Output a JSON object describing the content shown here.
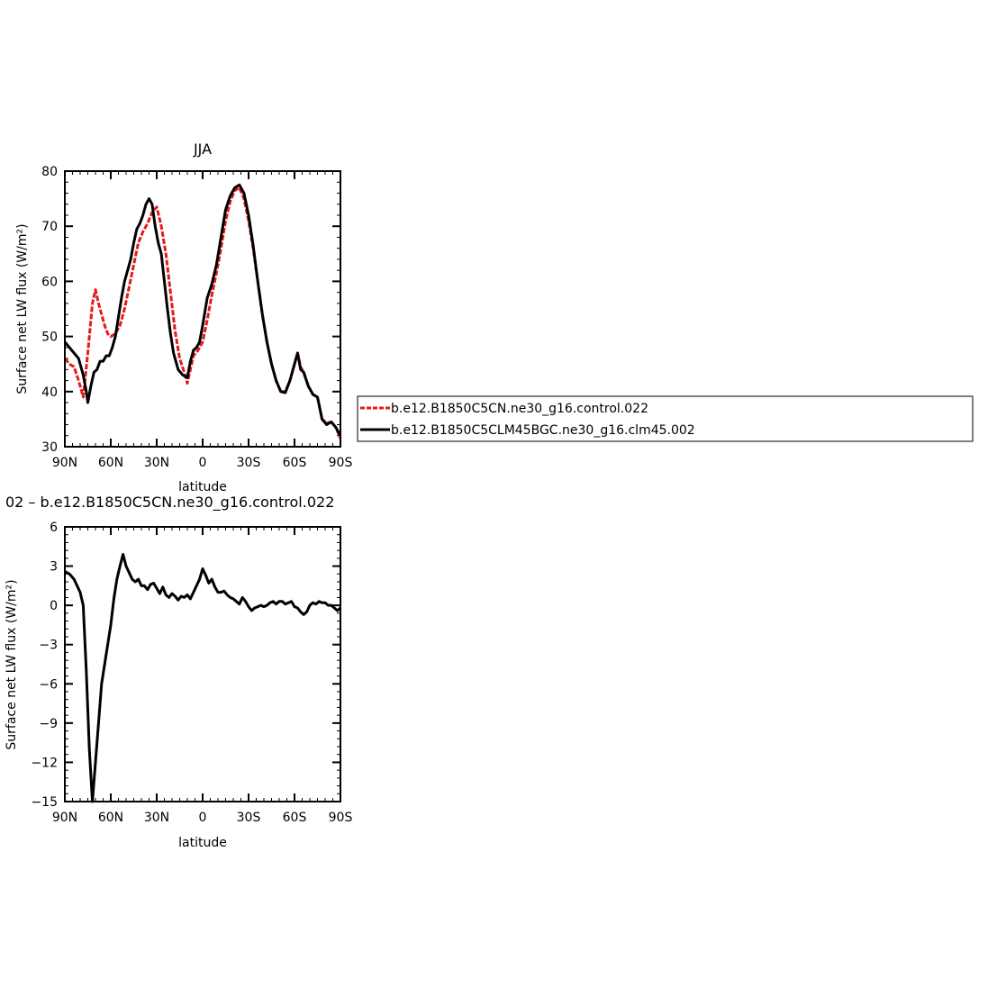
{
  "chart_data": [
    {
      "type": "line",
      "title": "JJA",
      "xlabel": "latitude",
      "ylabel": "Surface net LW flux (W/m²)",
      "xlim": [
        90,
        -90
      ],
      "ylim": [
        30,
        80
      ],
      "x_ticks": [
        90,
        60,
        30,
        0,
        -30,
        -60,
        -90
      ],
      "x_tick_labels": [
        "90N",
        "60N",
        "30N",
        "0",
        "30S",
        "60S",
        "90S"
      ],
      "y_ticks": [
        30,
        40,
        50,
        60,
        70,
        80
      ],
      "y_tick_labels": [
        "30",
        "40",
        "50",
        "60",
        "70",
        "80"
      ],
      "legend_position": "right",
      "series": [
        {
          "name": "b.e12.B1850C5CN.ne30_g16.control.022",
          "color": "#e41a1c",
          "dash": "dashed",
          "points": [
            [
              90,
              46
            ],
            [
              87,
              45
            ],
            [
              84,
              44.5
            ],
            [
              81,
              42
            ],
            [
              78,
              39
            ],
            [
              75,
              47
            ],
            [
              72,
              56
            ],
            [
              70,
              58.5
            ],
            [
              68,
              56
            ],
            [
              66,
              54
            ],
            [
              64,
              52
            ],
            [
              62,
              50.5
            ],
            [
              60,
              50
            ],
            [
              57,
              50.5
            ],
            [
              54,
              52
            ],
            [
              51,
              55
            ],
            [
              48,
              59
            ],
            [
              45,
              63
            ],
            [
              42,
              67
            ],
            [
              39,
              69
            ],
            [
              36,
              70.5
            ],
            [
              33,
              72.5
            ],
            [
              30,
              73.5
            ],
            [
              27,
              70
            ],
            [
              24,
              65
            ],
            [
              21,
              58
            ],
            [
              18,
              51
            ],
            [
              15,
              46
            ],
            [
              12,
              43.5
            ],
            [
              10,
              41.5
            ],
            [
              8,
              44
            ],
            [
              6,
              46.5
            ],
            [
              3,
              47.5
            ],
            [
              0,
              49
            ],
            [
              -3,
              53
            ],
            [
              -6,
              57.5
            ],
            [
              -9,
              61.5
            ],
            [
              -12,
              66
            ],
            [
              -15,
              71
            ],
            [
              -18,
              74.5
            ],
            [
              -21,
              76.5
            ],
            [
              -24,
              77
            ],
            [
              -27,
              75
            ],
            [
              -30,
              71
            ],
            [
              -33,
              66
            ],
            [
              -36,
              60
            ],
            [
              -39,
              54
            ],
            [
              -42,
              49
            ],
            [
              -45,
              45
            ],
            [
              -48,
              42
            ],
            [
              -51,
              40
            ],
            [
              -54,
              40
            ],
            [
              -57,
              42
            ],
            [
              -60,
              45
            ],
            [
              -62,
              47
            ],
            [
              -64,
              44.5
            ],
            [
              -66,
              43.5
            ],
            [
              -69,
              41
            ],
            [
              -72,
              39.5
            ],
            [
              -75,
              39
            ],
            [
              -78,
              35
            ],
            [
              -81,
              34.3
            ],
            [
              -84,
              34.5
            ],
            [
              -87,
              33.5
            ],
            [
              -90,
              31.5
            ]
          ]
        },
        {
          "name": "b.e12.B1850C5CLM45BGC.ne30_g16.clm45.002",
          "color": "#000000",
          "dash": "solid",
          "points": [
            [
              90,
              49
            ],
            [
              87,
              48
            ],
            [
              84,
              47
            ],
            [
              81,
              46
            ],
            [
              78,
              43
            ],
            [
              76,
              40
            ],
            [
              75,
              38
            ],
            [
              73,
              41
            ],
            [
              71,
              43.5
            ],
            [
              69,
              44
            ],
            [
              67,
              45.5
            ],
            [
              65,
              45.5
            ],
            [
              63,
              46.5
            ],
            [
              61,
              46.5
            ],
            [
              59,
              48
            ],
            [
              57,
              50
            ],
            [
              55,
              53.5
            ],
            [
              53,
              57
            ],
            [
              51,
              60
            ],
            [
              49,
              62
            ],
            [
              47,
              64
            ],
            [
              45,
              67
            ],
            [
              43,
              69.5
            ],
            [
              41,
              70.5
            ],
            [
              39,
              72
            ],
            [
              37,
              74
            ],
            [
              35,
              75
            ],
            [
              33,
              74
            ],
            [
              31,
              70
            ],
            [
              29,
              67
            ],
            [
              27,
              65
            ],
            [
              25,
              60
            ],
            [
              23,
              55
            ],
            [
              21,
              50.5
            ],
            [
              19,
              47
            ],
            [
              16,
              44
            ],
            [
              13,
              43
            ],
            [
              10,
              42.5
            ],
            [
              8,
              45.5
            ],
            [
              6,
              47.5
            ],
            [
              4,
              48
            ],
            [
              2,
              49
            ],
            [
              0,
              52
            ],
            [
              -3,
              57
            ],
            [
              -6,
              59.5
            ],
            [
              -9,
              63
            ],
            [
              -12,
              68
            ],
            [
              -15,
              73
            ],
            [
              -18,
              75.5
            ],
            [
              -21,
              77
            ],
            [
              -24,
              77.5
            ],
            [
              -27,
              76
            ],
            [
              -30,
              72
            ],
            [
              -33,
              66.5
            ],
            [
              -36,
              60
            ],
            [
              -39,
              54
            ],
            [
              -42,
              49
            ],
            [
              -45,
              45
            ],
            [
              -48,
              42
            ],
            [
              -51,
              40
            ],
            [
              -54,
              39.8
            ],
            [
              -57,
              42
            ],
            [
              -60,
              45
            ],
            [
              -62,
              47
            ],
            [
              -64,
              44
            ],
            [
              -66,
              43.5
            ],
            [
              -69,
              41
            ],
            [
              -72,
              39.5
            ],
            [
              -75,
              39
            ],
            [
              -78,
              35
            ],
            [
              -81,
              34
            ],
            [
              -84,
              34.5
            ],
            [
              -87,
              33.5
            ],
            [
              -90,
              32
            ]
          ]
        }
      ]
    },
    {
      "type": "line",
      "title": "02 – b.e12.B1850C5CN.ne30_g16.control.022",
      "xlabel": "latitude",
      "ylabel": "Surface net LW flux (W/m²)",
      "xlim": [
        90,
        -90
      ],
      "ylim": [
        -15,
        6
      ],
      "x_ticks": [
        90,
        60,
        30,
        0,
        -30,
        -60,
        -90
      ],
      "x_tick_labels": [
        "90N",
        "60N",
        "30N",
        "0",
        "30S",
        "60S",
        "90S"
      ],
      "y_ticks": [
        -15,
        -12,
        -9,
        -6,
        -3,
        0,
        3,
        6
      ],
      "y_tick_labels": [
        "−15",
        "−12",
        "−9",
        "−6",
        "−3",
        "0",
        "3",
        "6"
      ],
      "series": [
        {
          "color": "#000000",
          "dash": "solid",
          "points": [
            [
              90,
              2.6
            ],
            [
              87,
              2.4
            ],
            [
              84,
              2
            ],
            [
              82,
              1.5
            ],
            [
              80,
              1
            ],
            [
              78,
              0
            ],
            [
              76,
              -5
            ],
            [
              74,
              -11
            ],
            [
              72,
              -15
            ],
            [
              70,
              -12
            ],
            [
              68,
              -9
            ],
            [
              66,
              -6
            ],
            [
              64,
              -4.5
            ],
            [
              62,
              -3
            ],
            [
              60,
              -1.5
            ],
            [
              58,
              0.5
            ],
            [
              56,
              2
            ],
            [
              54,
              3
            ],
            [
              52,
              3.9
            ],
            [
              50,
              3
            ],
            [
              48,
              2.5
            ],
            [
              46,
              2
            ],
            [
              44,
              1.8
            ],
            [
              42,
              2
            ],
            [
              40,
              1.5
            ],
            [
              38,
              1.5
            ],
            [
              36,
              1.2
            ],
            [
              34,
              1.6
            ],
            [
              32,
              1.7
            ],
            [
              30,
              1.3
            ],
            [
              28,
              0.9
            ],
            [
              26,
              1.4
            ],
            [
              24,
              0.8
            ],
            [
              22,
              0.6
            ],
            [
              20,
              0.9
            ],
            [
              18,
              0.7
            ],
            [
              16,
              0.4
            ],
            [
              14,
              0.7
            ],
            [
              12,
              0.6
            ],
            [
              10,
              0.8
            ],
            [
              8,
              0.5
            ],
            [
              6,
              1
            ],
            [
              4,
              1.5
            ],
            [
              2,
              2
            ],
            [
              0,
              2.8
            ],
            [
              -2,
              2.3
            ],
            [
              -4,
              1.7
            ],
            [
              -6,
              2
            ],
            [
              -8,
              1.4
            ],
            [
              -10,
              1
            ],
            [
              -12,
              1
            ],
            [
              -14,
              1.1
            ],
            [
              -16,
              0.8
            ],
            [
              -18,
              0.6
            ],
            [
              -20,
              0.5
            ],
            [
              -22,
              0.3
            ],
            [
              -24,
              0.1
            ],
            [
              -26,
              0.6
            ],
            [
              -28,
              0.3
            ],
            [
              -30,
              -0.1
            ],
            [
              -32,
              -0.4
            ],
            [
              -34,
              -0.2
            ],
            [
              -36,
              -0.1
            ],
            [
              -38,
              0
            ],
            [
              -40,
              -0.1
            ],
            [
              -42,
              0
            ],
            [
              -44,
              0.2
            ],
            [
              -46,
              0.3
            ],
            [
              -48,
              0.1
            ],
            [
              -50,
              0.3
            ],
            [
              -52,
              0.3
            ],
            [
              -54,
              0.1
            ],
            [
              -56,
              0.2
            ],
            [
              -58,
              0.3
            ],
            [
              -60,
              -0.1
            ],
            [
              -62,
              -0.2
            ],
            [
              -64,
              -0.5
            ],
            [
              -66,
              -0.7
            ],
            [
              -68,
              -0.5
            ],
            [
              -70,
              0
            ],
            [
              -72,
              0.2
            ],
            [
              -74,
              0.1
            ],
            [
              -76,
              0.3
            ],
            [
              -78,
              0.2
            ],
            [
              -80,
              0.2
            ],
            [
              -82,
              0
            ],
            [
              -84,
              0
            ],
            [
              -86,
              -0.2
            ],
            [
              -88,
              -0.4
            ],
            [
              -90,
              -0.2
            ]
          ]
        }
      ]
    }
  ]
}
